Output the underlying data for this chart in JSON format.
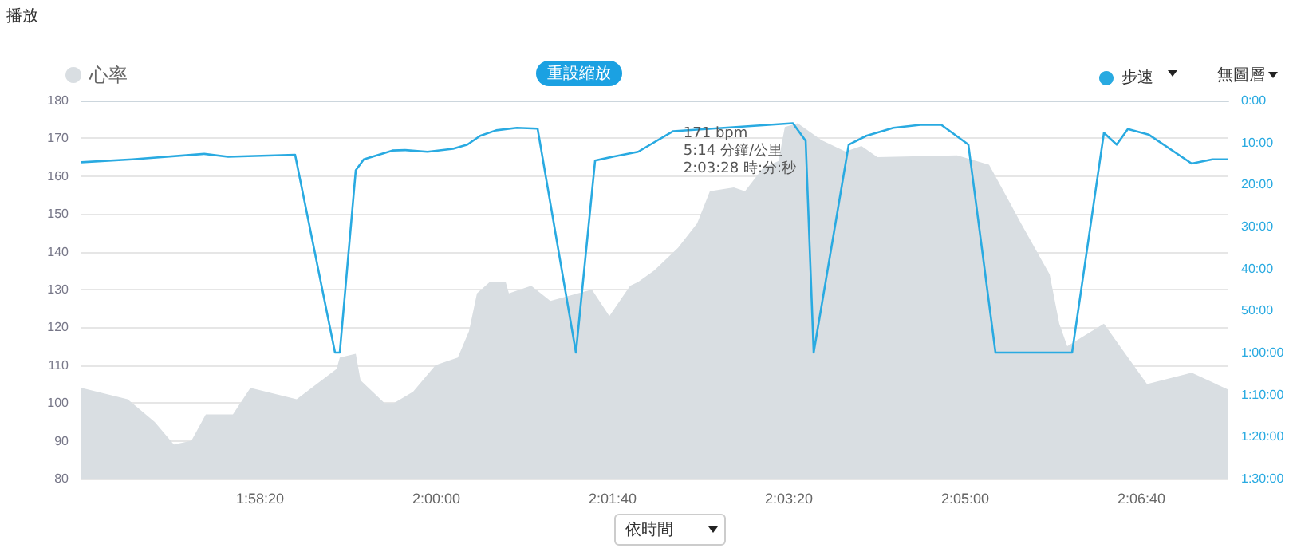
{
  "chart_data": {
    "type": "area",
    "xlabel": "依時間",
    "annotations": [
      "播放",
      "重設縮放",
      "無圖層",
      {
        "text": "171 bpm\n5:14 分鐘/公里\n2:03:28 時:分:秒",
        "x": 2.0578,
        "y": 171
      }
    ],
    "xlim": [
      1.94407,
      2.12481
    ],
    "xticks": [
      {
        "value": 1.972222,
        "label": "1:58:20"
      },
      {
        "value": 2.0,
        "label": "2:00:00"
      },
      {
        "value": 2.027778,
        "label": "2:01:40"
      },
      {
        "value": 2.055556,
        "label": "2:03:20"
      },
      {
        "value": 2.083333,
        "label": "2:05:00"
      },
      {
        "value": 2.111111,
        "label": "2:06:40"
      }
    ],
    "ylim": [
      80,
      180
    ],
    "yticks": [
      80,
      90,
      100,
      110,
      120,
      130,
      140,
      150,
      160,
      170,
      180
    ],
    "y2lim": [
      90,
      0
    ],
    "y2ticks": [
      {
        "value": 0,
        "label": "0:00"
      },
      {
        "value": 10,
        "label": "10:00"
      },
      {
        "value": 20,
        "label": "20:00"
      },
      {
        "value": 30,
        "label": "30:00"
      },
      {
        "value": 40,
        "label": "40:00"
      },
      {
        "value": 50,
        "label": "50:00"
      },
      {
        "value": 60,
        "label": "1:00:00"
      },
      {
        "value": 70,
        "label": "1:10:00"
      },
      {
        "value": 80,
        "label": "1:20:00"
      },
      {
        "value": 90,
        "label": "1:30:00"
      }
    ],
    "grid": "y",
    "legend": "top",
    "marker": "none",
    "line_style": "solid",
    "series": [
      {
        "name": "心率",
        "color": "#d9dee2",
        "x": [
          1.94407,
          1.95136,
          1.95563,
          1.95865,
          1.96141,
          1.96368,
          1.96795,
          1.97071,
          1.978,
          1.98429,
          1.98479,
          1.98731,
          1.98806,
          1.99183,
          1.99334,
          1.99635,
          1.99988,
          2.00339,
          2.00515,
          2.00641,
          2.00842,
          2.01093,
          2.01144,
          2.01496,
          2.01797,
          2.02451,
          2.02727,
          2.03054,
          2.0318,
          2.03431,
          2.03808,
          2.0411,
          2.04311,
          2.04688,
          2.04864,
          2.05141,
          2.05392,
          2.05492,
          2.05694,
          2.06071,
          2.06448,
          2.06699,
          2.06951,
          2.08207,
          2.0871,
          2.09037,
          2.09213,
          2.09665,
          2.09816,
          2.09942,
          2.1052,
          2.10772,
          2.11199,
          2.11903,
          2.12481
        ],
        "values": [
          104,
          101,
          95,
          89,
          90,
          97,
          97,
          104,
          101,
          109,
          112,
          113,
          106,
          100,
          100,
          103,
          110,
          112,
          119,
          129,
          132,
          132,
          129,
          131,
          127,
          130,
          123,
          131,
          132,
          135,
          141,
          147.5,
          156,
          157,
          156,
          162,
          164,
          173,
          174,
          169.5,
          166.5,
          168,
          165,
          165.5,
          163,
          153,
          147.5,
          134,
          121,
          115,
          121,
          115,
          105,
          108,
          103.5
        ]
      },
      {
        "name": "步速",
        "type": "line",
        "axis": "y2",
        "color": "#29aae1",
        "x": [
          1.94407,
          1.95211,
          1.96343,
          1.9672,
          1.97775,
          1.98404,
          1.98479,
          1.98731,
          1.98857,
          1.99309,
          1.9951,
          1.99862,
          2.00264,
          2.0049,
          2.00691,
          2.00942,
          2.01269,
          2.01596,
          2.022,
          2.02502,
          2.02778,
          2.0318,
          2.03733,
          2.05619,
          2.0582,
          2.05946,
          2.06499,
          2.06776,
          2.07203,
          2.0763,
          2.07957,
          2.08384,
          2.08811,
          2.10018,
          2.1052,
          2.10721,
          2.10897,
          2.11224,
          2.11903,
          2.1223,
          2.12481
        ],
        "values": [
          14.7,
          14.0,
          12.7,
          13.4,
          12.9,
          60,
          60,
          16.6,
          14.0,
          11.9,
          11.8,
          12.2,
          11.5,
          10.5,
          8.4,
          7.1,
          6.5,
          6.7,
          60,
          14.3,
          13.4,
          12.2,
          7.3,
          5.4,
          9.6,
          60,
          10.5,
          8.4,
          6.5,
          5.8,
          5.8,
          10.5,
          60,
          60,
          7.7,
          10.5,
          6.8,
          8.1,
          15.0,
          14.0,
          14.0
        ]
      }
    ]
  }
}
